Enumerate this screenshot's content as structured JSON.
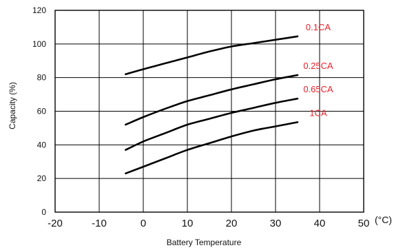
{
  "chart_data": {
    "type": "line",
    "title": "",
    "xlabel": "Battery Temperature",
    "ylabel": "Capacity (%)",
    "x_unit": "(°C)",
    "xlim": [
      -20,
      50
    ],
    "ylim": [
      0,
      120
    ],
    "xticks": [
      -20,
      -10,
      0,
      10,
      20,
      30,
      40,
      50
    ],
    "yticks": [
      0,
      20,
      40,
      60,
      80,
      100,
      120
    ],
    "grid": true,
    "legend": "inline-right",
    "colors": {
      "axis": "#000000",
      "curve": "#000000",
      "label": "#e8202a"
    },
    "series": [
      {
        "name": "0.1CA",
        "x": [
          -4,
          0,
          5,
          10,
          15,
          20,
          25,
          30,
          35
        ],
        "y": [
          82,
          85,
          88.5,
          92,
          95.5,
          98.5,
          100.5,
          102.5,
          104.5
        ]
      },
      {
        "name": "0.25CA",
        "x": [
          -4,
          0,
          5,
          10,
          15,
          20,
          25,
          30,
          35
        ],
        "y": [
          52,
          56.5,
          61.5,
          66,
          69.5,
          73,
          76,
          79,
          81.5
        ]
      },
      {
        "name": "0.65CA",
        "x": [
          -4,
          0,
          5,
          10,
          15,
          20,
          25,
          30,
          35
        ],
        "y": [
          37,
          42,
          47,
          52,
          55.5,
          59,
          62,
          65,
          67.5
        ]
      },
      {
        "name": "1CA",
        "x": [
          -4,
          0,
          5,
          10,
          15,
          20,
          25,
          30,
          35
        ],
        "y": [
          23,
          27,
          32,
          37,
          41,
          45,
          48.5,
          51,
          53.5
        ]
      }
    ]
  }
}
